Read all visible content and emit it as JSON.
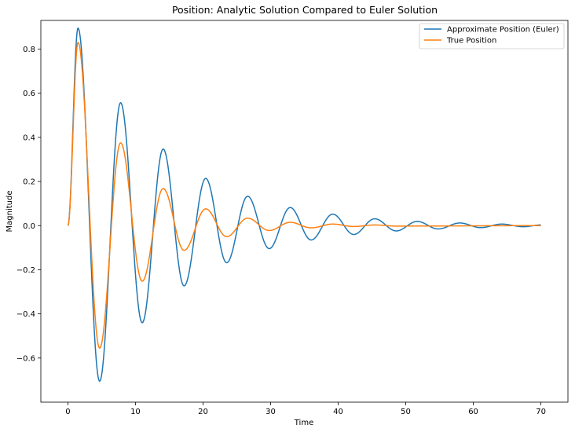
{
  "chart_data": {
    "type": "line",
    "title": "Position: Analytic Solution Compared to Euler Solution",
    "xlabel": "Time",
    "ylabel": "Magnitude",
    "xlim": [
      -4,
      74
    ],
    "ylim": [
      -0.8,
      0.93
    ],
    "x_ticks": [
      0,
      10,
      20,
      30,
      40,
      50,
      60,
      70
    ],
    "y_ticks": [
      -0.6,
      -0.4,
      -0.2,
      0.0,
      0.2,
      0.4,
      0.6,
      0.8
    ],
    "x_tick_labels": [
      "0",
      "10",
      "20",
      "30",
      "40",
      "50",
      "60",
      "70"
    ],
    "y_tick_labels": [
      "−0.6",
      "−0.4",
      "−0.2",
      "0.0",
      "0.2",
      "0.4",
      "0.6",
      "0.8"
    ],
    "grid": false,
    "legend_position": "top-right",
    "series": [
      {
        "name": "Approximate Position (Euler)",
        "color": "#1f77b4",
        "x": [
          0,
          1.5,
          4.7,
          7.8,
          11.0,
          14.1,
          17.2,
          20.4,
          23.5,
          26.6,
          29.8,
          32.9,
          36.0,
          39.2,
          42.3,
          45.4,
          48.6,
          51.7,
          54.8,
          58.0,
          61.1,
          64.2,
          67.4,
          70
        ],
        "y": [
          0,
          0.895,
          -0.705,
          0.557,
          -0.44,
          0.347,
          -0.273,
          0.214,
          -0.168,
          0.133,
          -0.104,
          0.082,
          -0.065,
          0.052,
          -0.04,
          0.031,
          -0.024,
          0.019,
          -0.015,
          0.012,
          -0.009,
          0.007,
          -0.005,
          0.003
        ]
      },
      {
        "name": "True Position",
        "color": "#ff7f0e",
        "x": [
          0,
          1.5,
          4.7,
          7.8,
          11.0,
          14.1,
          17.2,
          20.4,
          23.5,
          26.6,
          29.8,
          32.9,
          36.0,
          39.2,
          42.3,
          45.4,
          48.6,
          70
        ],
        "y": [
          0,
          0.83,
          -0.555,
          0.375,
          -0.252,
          0.168,
          -0.112,
          0.076,
          -0.05,
          0.034,
          -0.022,
          0.015,
          -0.01,
          0.007,
          -0.004,
          0.003,
          -0.002,
          0.0
        ]
      }
    ]
  }
}
